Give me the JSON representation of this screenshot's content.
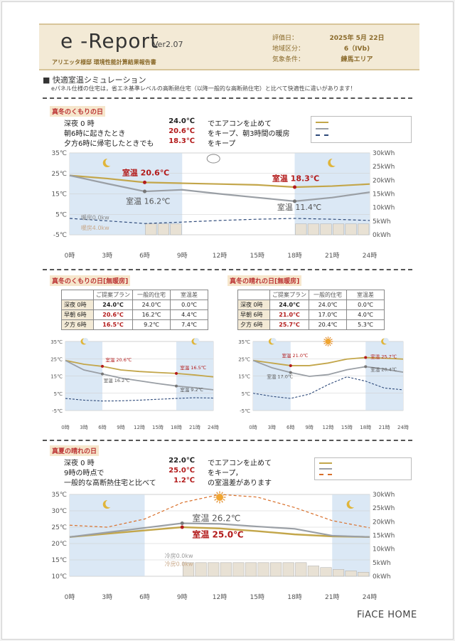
{
  "header": {
    "logo": "e -Report",
    "version": "Ver2.07",
    "subtitle": "アリエッタ様邸 環境性能計算結果報告書",
    "meta_labels": [
      "評価日：",
      "地域区分：",
      "気象条件："
    ],
    "meta_values": [
      "2025年 5月 22日",
      "6（IVb)",
      "練馬エリア"
    ]
  },
  "section": {
    "title": "■ 快適室温シミュレーション",
    "description": "eパネル仕様の住宅は，省エネ基準レベルの高断熱住宅（以降一般的な高断熱住宅）と比べて快適性に違いがあります！"
  },
  "colors": {
    "gold": "#c3a64a",
    "gray": "#9a9fa5",
    "dash": "#2e4a7a",
    "red": "#b31b1b",
    "band": "#dbe8f5",
    "bar": "#e8e1d4"
  },
  "winter_cloudy": {
    "label": "真冬のくもりの日",
    "rows": [
      {
        "text": "深夜 0 時",
        "value": "24.0℃",
        "note": "でエアコンを止めて",
        "red": false
      },
      {
        "text": "朝6時に起きたとき",
        "value": "20.6℃",
        "note": "をキープ、朝3時間の暖房",
        "red": true
      },
      {
        "text": "夕方6時に帰宅したときでも",
        "value": "18.3℃",
        "note": "をキープ",
        "red": true
      }
    ],
    "annotations": {
      "a1": "室温 20.6℃",
      "a2": "室温 16.2℃",
      "a3": "室温 18.3℃",
      "a4": "室温 11.4℃",
      "heat1": "暖房0.0kw",
      "heat2": "暖房4.0kw"
    }
  },
  "chart_data": [
    {
      "type": "line",
      "title": "真冬のくもりの日",
      "x": [
        0,
        3,
        6,
        9,
        12,
        15,
        18,
        21,
        24
      ],
      "xticks": [
        "0時",
        "3時",
        "6時",
        "9時",
        "12時",
        "15時",
        "18時",
        "21時",
        "24時"
      ],
      "ylim": [
        -5,
        35
      ],
      "yticks_left": [
        "35℃",
        "25℃",
        "15℃",
        "5℃",
        "-5℃"
      ],
      "ylim_right": [
        0,
        30
      ],
      "yticks_right": [
        "30kWh",
        "25kWh",
        "20kWh",
        "15kWh",
        "10kWh",
        "5kWh",
        "0kWh"
      ],
      "series": [
        {
          "values": [
            24.0,
            22.5,
            20.6,
            20.2,
            19.8,
            19.4,
            18.3,
            18.8,
            19.8
          ]
        },
        {
          "values": [
            24.0,
            20.0,
            16.2,
            17.0,
            15.0,
            13.2,
            11.4,
            13.2,
            15.8
          ]
        },
        {
          "values": [
            3.0,
            1.8,
            0.5,
            1.2,
            2.0,
            2.6,
            3.0,
            2.6,
            2.0
          ]
        }
      ],
      "bars": [
        0,
        0,
        0,
        0,
        0,
        0,
        4,
        4,
        4,
        0,
        0,
        0,
        0,
        0,
        0,
        0,
        0,
        0,
        4,
        4,
        4,
        4,
        4,
        4,
        4
      ]
    },
    {
      "type": "line",
      "title": "真冬のくもりの日[無暖房]",
      "xticks": [
        "0時",
        "3時",
        "6時",
        "9時",
        "12時",
        "15時",
        "18時",
        "21時",
        "24時"
      ],
      "ylim": [
        -5,
        35
      ],
      "yticks_left": [
        "35℃",
        "25℃",
        "15℃",
        "5℃",
        "-5℃"
      ],
      "series": [
        {
          "values": [
            24.0,
            21.8,
            20.6,
            18.5,
            17.6,
            17.0,
            16.5,
            15.6,
            14.5
          ]
        },
        {
          "values": [
            24.0,
            18.5,
            16.2,
            13.8,
            12.2,
            10.6,
            9.2,
            8.2,
            7.0
          ]
        },
        {
          "values": [
            2.0,
            1.0,
            0.5,
            0.6,
            1.0,
            1.5,
            2.0,
            2.4,
            2.2
          ]
        }
      ],
      "annotations": [
        "室温 20.6℃",
        "室温 16.2℃",
        "室温 16.5℃",
        "室温 9.2℃"
      ]
    },
    {
      "type": "line",
      "title": "真冬の晴れの日[無暖房]",
      "xticks": [
        "0時",
        "3時",
        "6時",
        "9時",
        "12時",
        "15時",
        "18時",
        "21時",
        "24時"
      ],
      "ylim": [
        -5,
        35
      ],
      "yticks_left": [
        "35℃",
        "25℃",
        "15℃",
        "5℃",
        "-5℃"
      ],
      "series": [
        {
          "values": [
            24.0,
            22.5,
            21.0,
            21.0,
            22.5,
            24.8,
            25.7,
            25.3,
            24.8
          ]
        },
        {
          "values": [
            24.0,
            19.8,
            17.0,
            14.8,
            15.8,
            18.6,
            20.4,
            19.0,
            17.2
          ]
        },
        {
          "values": [
            5.0,
            3.2,
            2.0,
            4.5,
            10.0,
            14.5,
            12.0,
            8.0,
            7.0
          ]
        }
      ],
      "annotations": [
        "室温 21.0℃",
        "室温 17.0℃",
        "室温 25.7℃",
        "室温 20.4℃"
      ]
    },
    {
      "type": "line",
      "title": "真夏の晴れの日",
      "xticks": [
        "0時",
        "3時",
        "6時",
        "9時",
        "12時",
        "15時",
        "18時",
        "21時",
        "24時"
      ],
      "ylim": [
        10,
        35
      ],
      "yticks_left": [
        "35℃",
        "30℃",
        "25℃",
        "20℃",
        "15℃",
        "10℃"
      ],
      "yticks_right": [
        "30kWh",
        "25kWh",
        "20kWh",
        "15kWh",
        "10kWh",
        "5kWh",
        "0kWh"
      ],
      "series": [
        {
          "values": [
            22.0,
            23.0,
            24.0,
            25.0,
            24.6,
            23.8,
            22.8,
            22.2,
            22.0
          ]
        },
        {
          "values": [
            22.0,
            23.4,
            24.8,
            26.2,
            26.0,
            25.2,
            24.5,
            22.4,
            22.0
          ]
        },
        {
          "values": [
            25.6,
            25.0,
            27.5,
            32.5,
            35.0,
            34.2,
            31.0,
            27.0,
            24.8
          ]
        }
      ],
      "bars": [
        0,
        0,
        0,
        0,
        0,
        0,
        0,
        0,
        0,
        5,
        5,
        5,
        5,
        5,
        5,
        5,
        5,
        5,
        5,
        3.8,
        3.2,
        2.5,
        2.0,
        1.5,
        1.2
      ]
    }
  ],
  "winter_tables": {
    "cloudy": {
      "label": "真冬のくもりの日[無暖房]",
      "headers": [
        "",
        "ご提案プラン",
        "一般的住宅",
        "室温差"
      ],
      "rows": [
        [
          "深夜 0時",
          "24.0℃",
          "24.0℃",
          "0.0℃"
        ],
        [
          "早朝 6時",
          "20.6℃",
          "16.2℃",
          "4.4℃"
        ],
        [
          "夕方 6時",
          "16.5℃",
          "9.2℃",
          "7.4℃"
        ]
      ]
    },
    "sunny": {
      "label": "真冬の晴れの日[無暖房]",
      "headers": [
        "",
        "ご提案プラン",
        "一般的住宅",
        "室温差"
      ],
      "rows": [
        [
          "深夜 0時",
          "24.0℃",
          "24.0℃",
          "0.0℃"
        ],
        [
          "早朝 6時",
          "21.0℃",
          "17.0℃",
          "4.0℃"
        ],
        [
          "夕方 6時",
          "25.7℃",
          "20.4℃",
          "5.3℃"
        ]
      ]
    }
  },
  "summer": {
    "label": "真夏の晴れの日",
    "rows": [
      {
        "text": "深夜 0 時",
        "value": "22.0℃",
        "note": "でエアコンを止めて",
        "red": false
      },
      {
        "text": "9時の時点で",
        "value": "25.0℃",
        "note": "をキープ，",
        "red": true
      },
      {
        "text": "一般的な高断熱住宅と比べて",
        "value": "1.2℃",
        "note": "の室温差があります",
        "red": true
      }
    ],
    "annotations": {
      "a1": "室温 26.2℃",
      "a2": "室温 25.0℃",
      "cool1": "冷房0.0kw",
      "cool2": "冷房0.0kw"
    }
  },
  "footer": {
    "brand": "FiACE HOME"
  }
}
